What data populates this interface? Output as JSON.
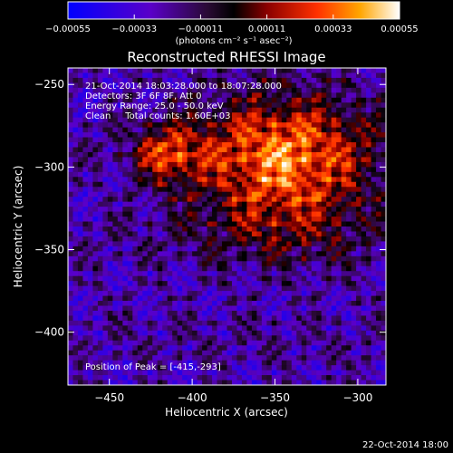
{
  "chart_data": {
    "type": "heatmap",
    "title": "Reconstructed RHESSI Image",
    "xlabel": "Heliocentric X (arcsec)",
    "ylabel": "Heliocentric Y (arcsec)",
    "xlim": [
      -475,
      -283
    ],
    "ylim": [
      -432,
      -240
    ],
    "x_ticks": [
      -450,
      -400,
      -350,
      -300
    ],
    "y_ticks": [
      -250,
      -300,
      -350,
      -400
    ],
    "colorbar": {
      "min": -0.00055,
      "max": 0.00055,
      "ticks": [
        "-0.00055",
        "-0.00033",
        "-0.00011",
        "0.00011",
        "0.00033",
        "0.00055"
      ],
      "units_label": "(photons cm⁻² s⁻¹ asec⁻²)"
    },
    "info_lines": [
      "21-Oct-2014 18:03:28.000 to 18:07:28.000",
      "Detectors: 3F 6F 8F, Att 0",
      "Energy Range: 25.0 - 50.0 keV",
      "Clean     Total counts: 1.60E+03"
    ],
    "peak_label": "Position of Peak = [-415,-293]",
    "peak": [
      -415,
      -293
    ],
    "grid": false
  },
  "footer": {
    "timestamp": "22-Oct-2014 18:00"
  }
}
